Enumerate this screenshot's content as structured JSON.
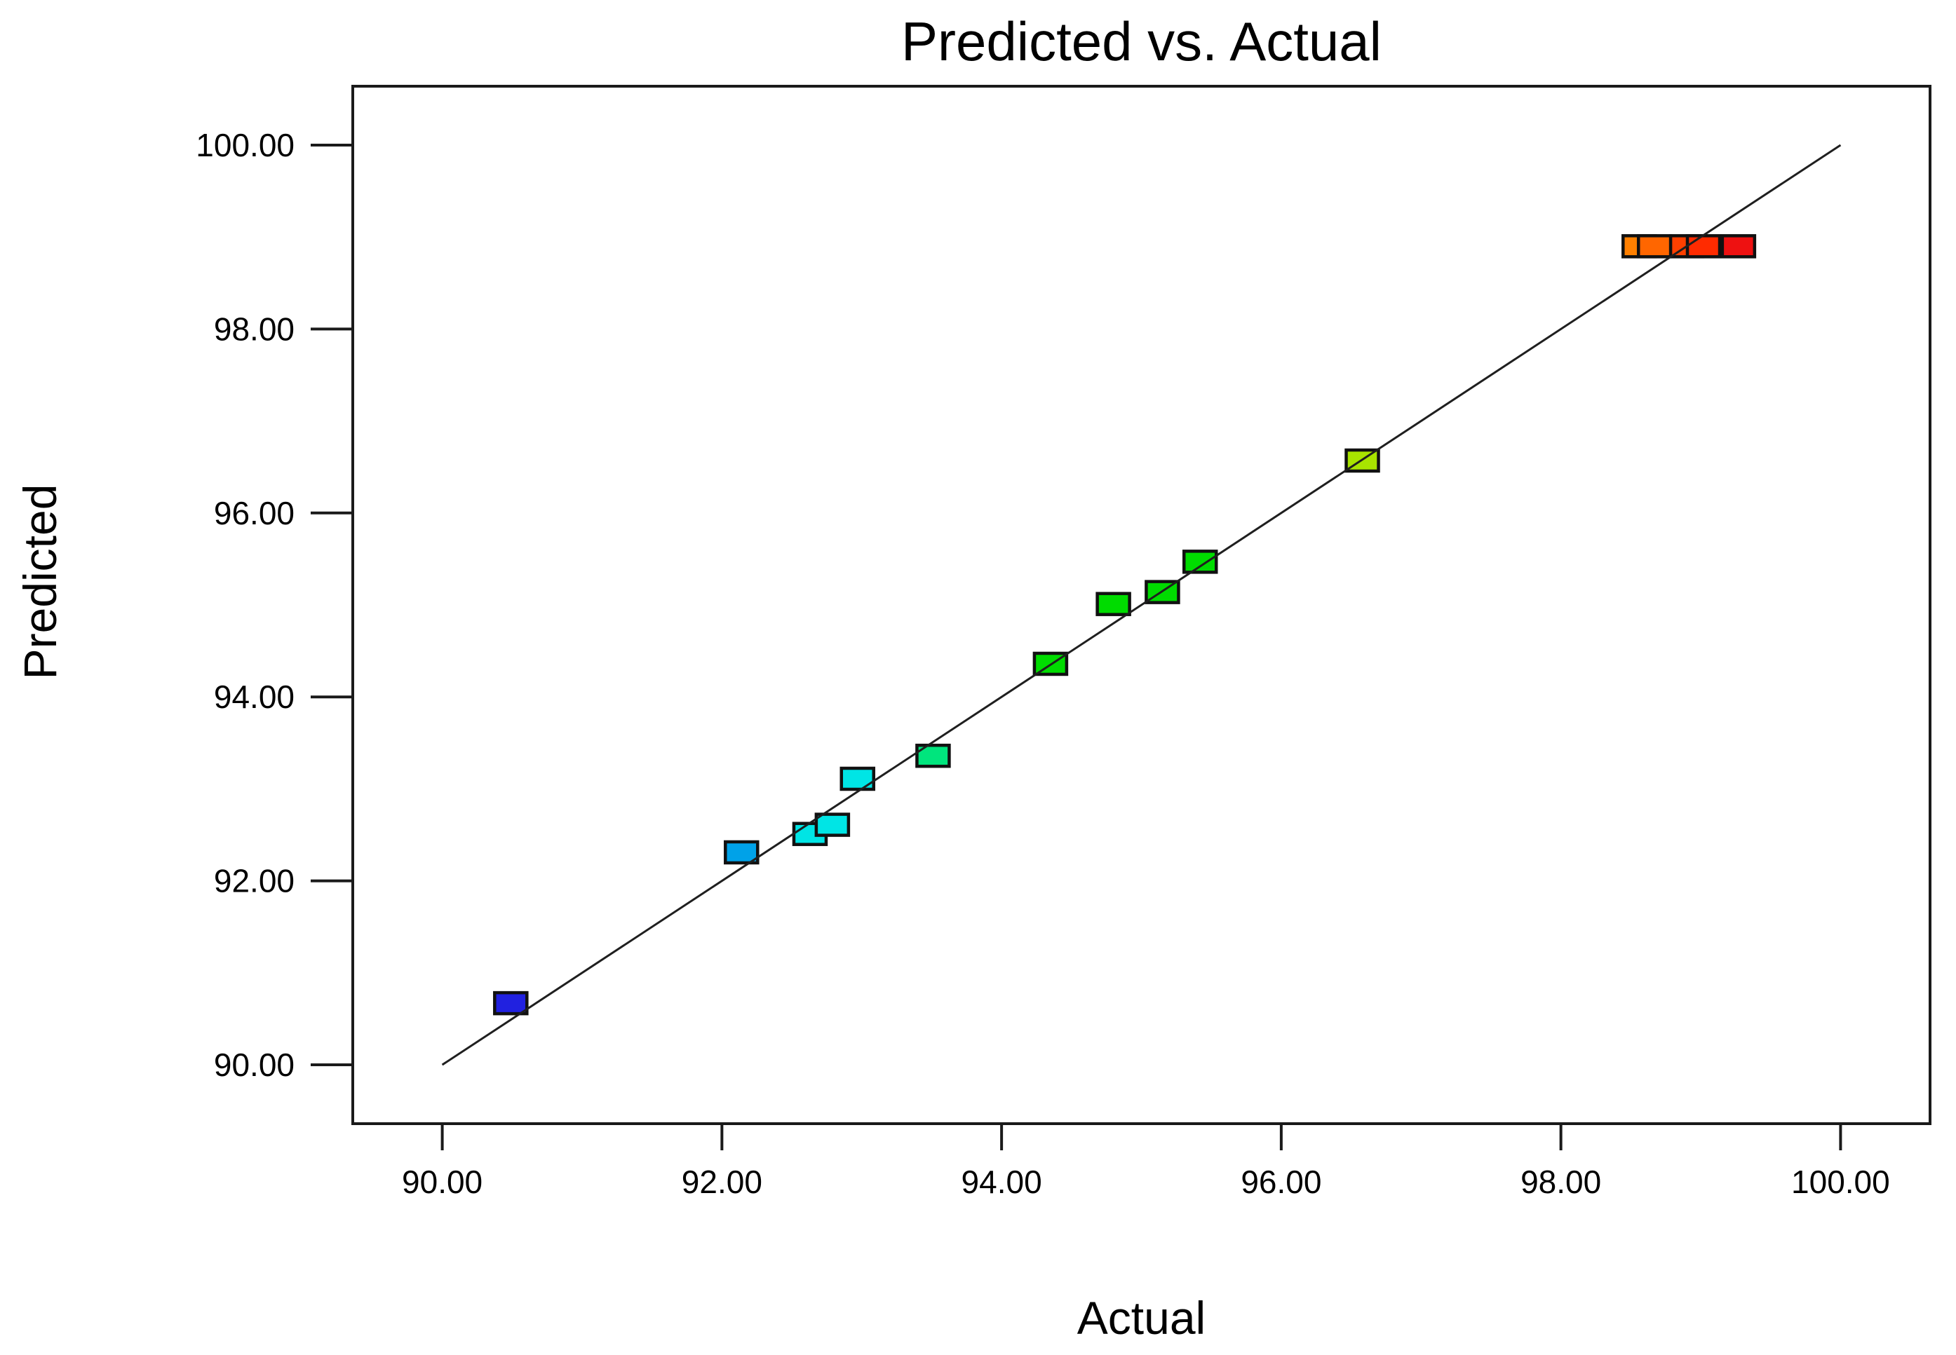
{
  "page": {
    "background": "#ffffff"
  },
  "title": "Predicted vs. Actual",
  "x_axis": {
    "label": "Actual",
    "tick_labels": [
      "90.00",
      "92.00",
      "94.00",
      "96.00",
      "98.00",
      "100.00"
    ]
  },
  "y_axis": {
    "label": "Predicted",
    "tick_labels": [
      "90.00",
      "92.00",
      "94.00",
      "96.00",
      "98.00",
      "100.00"
    ]
  },
  "colors": {
    "frame": "#1a1a1a",
    "tick": "#1a1a1a",
    "text": "#000000",
    "reference_line": "#1f1f1f",
    "marker_border": "#111111"
  },
  "chart_data": {
    "type": "scatter",
    "title": "Predicted vs. Actual",
    "xlabel": "Actual",
    "ylabel": "Predicted",
    "xlim": [
      89.36,
      100.64
    ],
    "ylim": [
      89.36,
      100.64
    ],
    "x_ticks": [
      90,
      92,
      94,
      96,
      98,
      100
    ],
    "y_ticks": [
      90,
      92,
      94,
      96,
      98,
      100
    ],
    "x_tick_labels": [
      "90.00",
      "92.00",
      "94.00",
      "96.00",
      "98.00",
      "100.00"
    ],
    "y_tick_labels": [
      "90.00",
      "92.00",
      "94.00",
      "96.00",
      "98.00",
      "100.00"
    ],
    "grid": false,
    "legend": null,
    "marker": "square",
    "marker_px": {
      "width": 46,
      "height": 30
    },
    "reference_line": {
      "x1": 90.0,
      "y1": 90.0,
      "x2": 100.0,
      "y2": 100.0
    },
    "points": [
      {
        "actual": 90.49,
        "predicted": 90.67,
        "color": "#2121E0"
      },
      {
        "actual": 92.14,
        "predicted": 92.31,
        "color": "#00A2E8"
      },
      {
        "actual": 92.63,
        "predicted": 92.51,
        "color": "#00E5E5"
      },
      {
        "actual": 92.79,
        "predicted": 92.61,
        "color": "#00E5E5"
      },
      {
        "actual": 92.97,
        "predicted": 93.11,
        "color": "#00E5E5"
      },
      {
        "actual": 93.51,
        "predicted": 93.36,
        "color": "#00E57D"
      },
      {
        "actual": 94.35,
        "predicted": 94.36,
        "color": "#00DC00"
      },
      {
        "actual": 94.8,
        "predicted": 95.01,
        "color": "#00DC00"
      },
      {
        "actual": 95.15,
        "predicted": 95.14,
        "color": "#00DC00"
      },
      {
        "actual": 95.42,
        "predicted": 95.47,
        "color": "#00DC00"
      },
      {
        "actual": 96.58,
        "predicted": 96.57,
        "color": "#A8E400"
      },
      {
        "actual": 98.56,
        "predicted": 98.9,
        "color": "#FF8000"
      },
      {
        "actual": 98.67,
        "predicted": 98.9,
        "color": "#FF6600"
      },
      {
        "actual": 98.9,
        "predicted": 98.9,
        "color": "#FF4000"
      },
      {
        "actual": 99.02,
        "predicted": 98.9,
        "color": "#FF2B00"
      },
      {
        "actual": 99.27,
        "predicted": 98.9,
        "color": "#EE1111"
      }
    ]
  }
}
